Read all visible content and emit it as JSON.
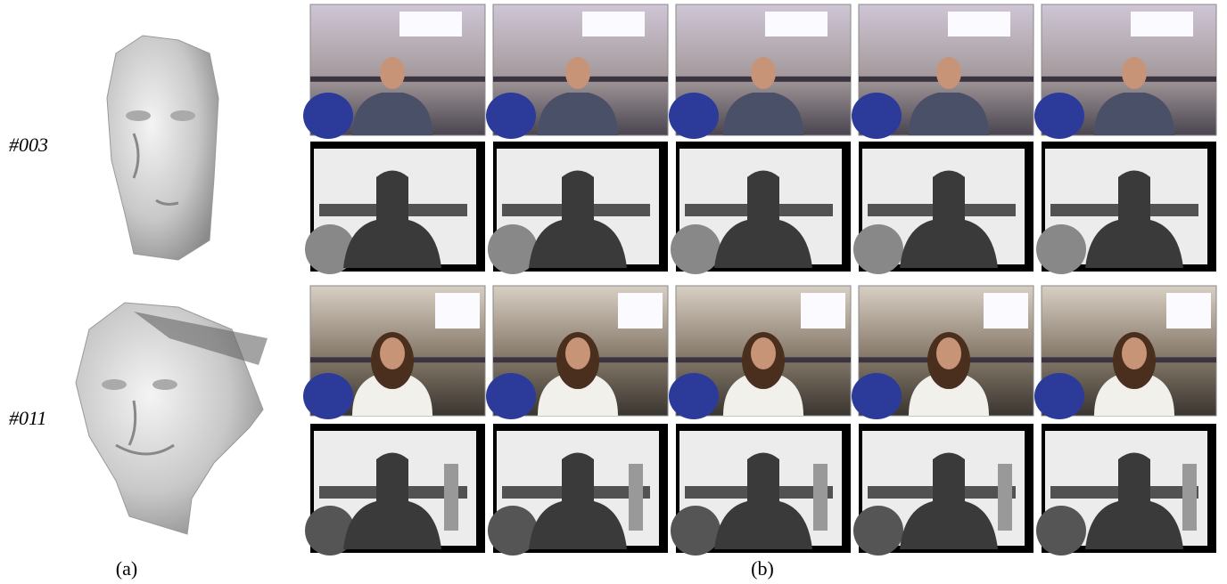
{
  "rows": [
    {
      "label": "#003"
    },
    {
      "label": "#011"
    }
  ],
  "captions": {
    "a": "(a)",
    "b": "(b)"
  }
}
